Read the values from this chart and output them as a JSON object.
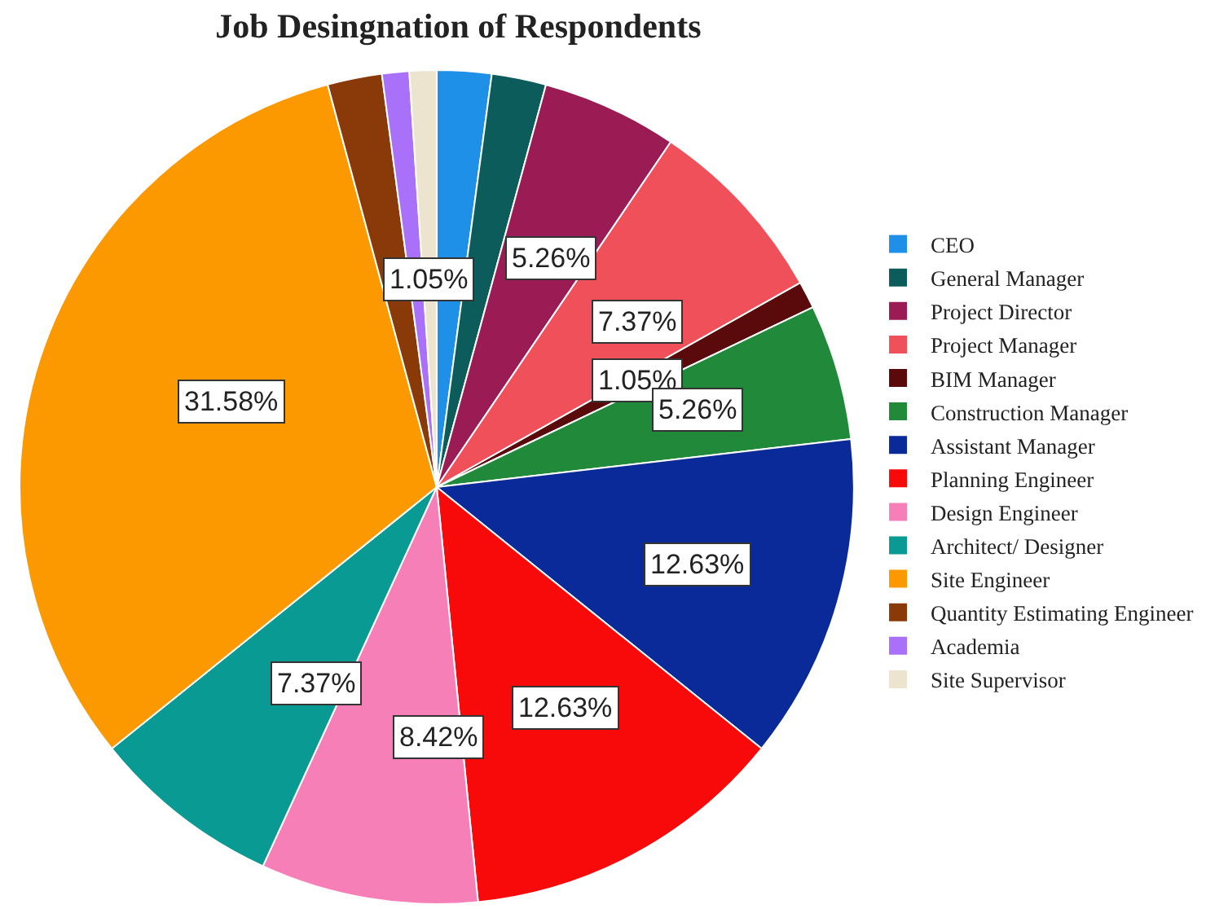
{
  "chart_data": {
    "type": "pie",
    "title": "Job Desingnation of Respondents",
    "categories": [
      "CEO",
      "General Manager",
      "Project Director",
      "Project Manager",
      "BIM Manager",
      "Construction Manager",
      "Assistant Manager",
      "Planning Engineer",
      "Design Engineer",
      "Architect/ Designer",
      "Site Engineer",
      "Quantity Estimating Engineer",
      "Academia",
      "Site Supervisor"
    ],
    "values": [
      2.11,
      2.11,
      5.26,
      7.37,
      1.05,
      5.26,
      12.63,
      12.63,
      8.42,
      7.37,
      31.58,
      2.11,
      1.05,
      1.05
    ],
    "colors": [
      "#1e90e8",
      "#0b5c5a",
      "#9b1b55",
      "#f0505a",
      "#5a0a0a",
      "#218a3a",
      "#0a2a9a",
      "#f80a0a",
      "#f77fb8",
      "#0a9a94",
      "#fc9800",
      "#8a3a08",
      "#a970fa",
      "#ece4cf"
    ],
    "value_labels": [
      null,
      null,
      "5.26%",
      "7.37%",
      "1.05%",
      "5.26%",
      "12.63%",
      "12.63%",
      "8.42%",
      "7.37%",
      "31.58%",
      null,
      null,
      "1.05%"
    ],
    "legend": "right"
  }
}
